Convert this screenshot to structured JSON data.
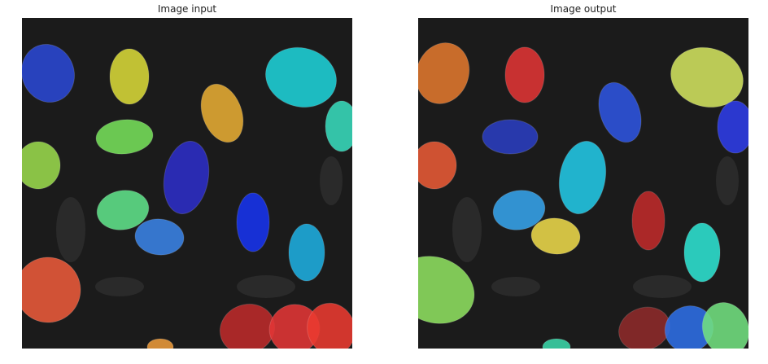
{
  "panels": {
    "input": {
      "title": "Image input",
      "cell_colors": [
        "#2a48d4",
        "#d8d838",
        "#1ed2d8",
        "#e6ac33",
        "#76e05a",
        "#9ad94c",
        "#2c2ec7",
        "#38dbbc",
        "#60e28a",
        "#3a83e6",
        "#1733ef",
        "#1eaee0",
        "#ea5a3a",
        "#bd2a2a",
        "#e23636",
        "#ea3a30",
        "#ea9a3a"
      ]
    },
    "output": {
      "title": "Image output",
      "cell_colors": [
        "#e0782e",
        "#e03434",
        "#d2e35e",
        "#2e54e0",
        "#2a3ec0",
        "#2d3ce8",
        "#e85a36",
        "#22c8e6",
        "#36a3ea",
        "#ecd84a",
        "#bf2a2a",
        "#2ee2d2",
        "#8ee060",
        "#8e2a2a",
        "#2e6ee6",
        "#72e080",
        "#3ad6a8"
      ]
    }
  }
}
